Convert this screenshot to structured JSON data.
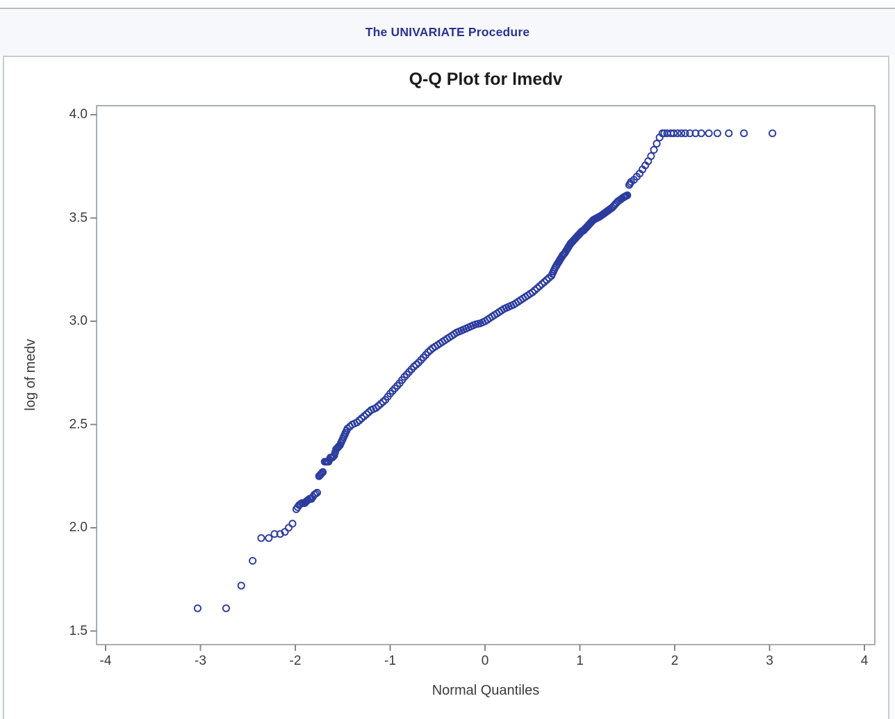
{
  "header": {
    "title": "The UNIVARIATE Procedure"
  },
  "chart_data": {
    "type": "scatter",
    "title": "Q-Q Plot for lmedv",
    "xlabel": "Normal Quantiles",
    "ylabel": "log of medv",
    "xlim": [
      -4.11,
      4.11
    ],
    "ylim": [
      1.43,
      4.04
    ],
    "xtick_values": [
      -4,
      -3,
      -2,
      -1,
      0,
      1,
      2,
      3,
      4
    ],
    "xtick_labels": [
      "-4",
      "-3",
      "-2",
      "-1",
      "0",
      "1",
      "2",
      "3",
      "4"
    ],
    "ytick_values": [
      1.5,
      2.0,
      2.5,
      3.0,
      3.5,
      4.0
    ],
    "ytick_labels": [
      "1.5",
      "2.0",
      "2.5",
      "3.0",
      "3.5",
      "4.0"
    ],
    "grid": false,
    "legend": "none",
    "marker": {
      "shape": "open-circle",
      "color": "#2c3c9e",
      "radius_px": 4.6,
      "stroke_px": 1.9
    },
    "points": [
      [
        -3.03,
        1.61
      ],
      [
        -2.73,
        1.61
      ],
      [
        -2.57,
        1.72
      ],
      [
        -2.45,
        1.84
      ],
      [
        -2.36,
        1.95
      ],
      [
        -2.28,
        1.95
      ],
      [
        -2.22,
        1.97
      ],
      [
        -2.16,
        1.97
      ],
      [
        -2.11,
        1.98
      ],
      [
        -2.07,
        2.0
      ],
      [
        -2.03,
        2.02
      ],
      [
        -1.99,
        2.09
      ],
      [
        -1.96,
        2.11
      ],
      [
        -1.93,
        2.12
      ],
      [
        -1.9,
        2.12
      ],
      [
        -1.88,
        2.13
      ],
      [
        -1.85,
        2.14
      ],
      [
        -1.83,
        2.14
      ],
      [
        -1.8,
        2.16
      ],
      [
        -1.77,
        2.17
      ],
      [
        -1.75,
        2.25
      ],
      [
        -1.73,
        2.26
      ],
      [
        -1.71,
        2.27
      ],
      [
        -1.69,
        2.32
      ],
      [
        -1.67,
        2.32
      ],
      [
        -1.65,
        2.32
      ],
      [
        -1.63,
        2.34
      ],
      [
        -1.61,
        2.34
      ],
      [
        -1.59,
        2.35
      ],
      [
        -1.57,
        2.38
      ],
      [
        -1.55,
        2.39
      ],
      [
        -1.53,
        2.4
      ],
      [
        -1.51,
        2.42
      ],
      [
        -1.49,
        2.44
      ],
      [
        -1.47,
        2.46
      ],
      [
        -1.45,
        2.48
      ],
      [
        -1.4,
        2.5
      ],
      [
        -1.35,
        2.51
      ],
      [
        -1.3,
        2.53
      ],
      [
        -1.25,
        2.55
      ],
      [
        -1.2,
        2.57
      ],
      [
        -1.15,
        2.58
      ],
      [
        -1.1,
        2.6
      ],
      [
        -1.05,
        2.62
      ],
      [
        -1.0,
        2.65
      ],
      [
        -0.95,
        2.675
      ],
      [
        -0.9,
        2.7
      ],
      [
        -0.85,
        2.73
      ],
      [
        -0.8,
        2.755
      ],
      [
        -0.75,
        2.78
      ],
      [
        -0.7,
        2.8
      ],
      [
        -0.65,
        2.825
      ],
      [
        -0.6,
        2.85
      ],
      [
        -0.55,
        2.87
      ],
      [
        -0.5,
        2.885
      ],
      [
        -0.45,
        2.9
      ],
      [
        -0.4,
        2.915
      ],
      [
        -0.35,
        2.93
      ],
      [
        -0.3,
        2.945
      ],
      [
        -0.25,
        2.955
      ],
      [
        -0.2,
        2.965
      ],
      [
        -0.15,
        2.975
      ],
      [
        -0.1,
        2.985
      ],
      [
        -0.05,
        2.99
      ],
      [
        0.0,
        3.0
      ],
      [
        0.05,
        3.015
      ],
      [
        0.1,
        3.03
      ],
      [
        0.15,
        3.045
      ],
      [
        0.2,
        3.06
      ],
      [
        0.25,
        3.07
      ],
      [
        0.3,
        3.08
      ],
      [
        0.35,
        3.095
      ],
      [
        0.4,
        3.11
      ],
      [
        0.45,
        3.125
      ],
      [
        0.5,
        3.14
      ],
      [
        0.55,
        3.16
      ],
      [
        0.6,
        3.18
      ],
      [
        0.65,
        3.2
      ],
      [
        0.7,
        3.22
      ],
      [
        0.72,
        3.24
      ],
      [
        0.74,
        3.26
      ],
      [
        0.76,
        3.275
      ],
      [
        0.78,
        3.29
      ],
      [
        0.8,
        3.305
      ],
      [
        0.82,
        3.32
      ],
      [
        0.84,
        3.33
      ],
      [
        0.86,
        3.345
      ],
      [
        0.88,
        3.36
      ],
      [
        0.9,
        3.375
      ],
      [
        0.92,
        3.385
      ],
      [
        0.94,
        3.395
      ],
      [
        0.96,
        3.405
      ],
      [
        0.98,
        3.415
      ],
      [
        1.0,
        3.425
      ],
      [
        1.02,
        3.435
      ],
      [
        1.04,
        3.44
      ],
      [
        1.06,
        3.45
      ],
      [
        1.08,
        3.46
      ],
      [
        1.1,
        3.47
      ],
      [
        1.12,
        3.48
      ],
      [
        1.14,
        3.49
      ],
      [
        1.16,
        3.495
      ],
      [
        1.18,
        3.5
      ],
      [
        1.2,
        3.505
      ],
      [
        1.22,
        3.51
      ],
      [
        1.25,
        3.52
      ],
      [
        1.28,
        3.53
      ],
      [
        1.31,
        3.54
      ],
      [
        1.34,
        3.55
      ],
      [
        1.37,
        3.565
      ],
      [
        1.4,
        3.58
      ],
      [
        1.43,
        3.59
      ],
      [
        1.46,
        3.6
      ],
      [
        1.48,
        3.605
      ],
      [
        1.5,
        3.61
      ],
      [
        1.52,
        3.66
      ],
      [
        1.54,
        3.675
      ],
      [
        1.57,
        3.685
      ],
      [
        1.6,
        3.7
      ],
      [
        1.63,
        3.715
      ],
      [
        1.66,
        3.735
      ],
      [
        1.69,
        3.755
      ],
      [
        1.72,
        3.775
      ],
      [
        1.75,
        3.8
      ],
      [
        1.78,
        3.83
      ],
      [
        1.81,
        3.86
      ],
      [
        1.84,
        3.89
      ],
      [
        1.87,
        3.91
      ],
      [
        1.89,
        3.91
      ],
      [
        1.92,
        3.91
      ],
      [
        1.96,
        3.91
      ],
      [
        1.99,
        3.91
      ],
      [
        2.03,
        3.91
      ],
      [
        2.07,
        3.91
      ],
      [
        2.11,
        3.91
      ],
      [
        2.16,
        3.91
      ],
      [
        2.22,
        3.91
      ],
      [
        2.28,
        3.91
      ],
      [
        2.36,
        3.91
      ],
      [
        2.45,
        3.91
      ],
      [
        2.57,
        3.91
      ],
      [
        2.73,
        3.91
      ],
      [
        3.03,
        3.91
      ]
    ]
  },
  "colors": {
    "header_text": "#2b3292",
    "header_band_bg": "#f7f8fc",
    "page_bg": "#fafbfd",
    "panel_bg": "#ffffff",
    "panel_border": "#c8cbce",
    "axis_frame": "#a9adb3",
    "tick_mark": "#84888e",
    "tick_text": "#3b3b3b",
    "marker": "#2c3c9e"
  }
}
